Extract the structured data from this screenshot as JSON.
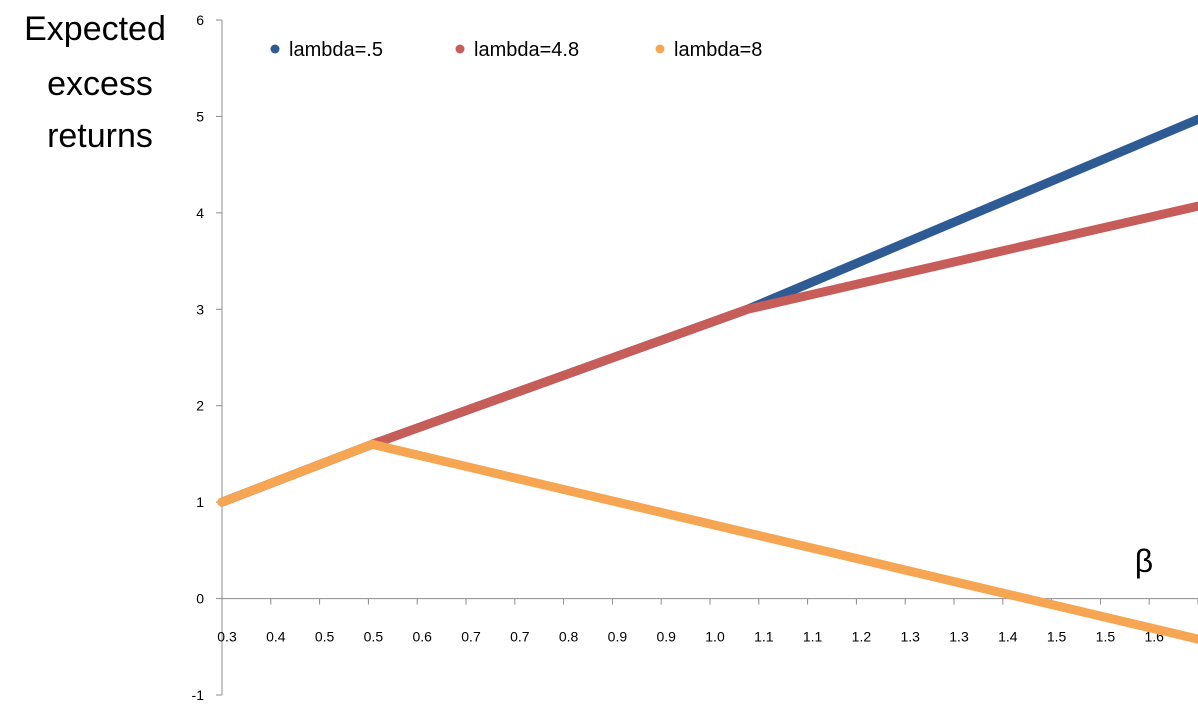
{
  "chart_data": {
    "type": "line",
    "ylabel": [
      "Expected",
      "excess",
      "returns"
    ],
    "xlabel": "β",
    "ylim": [
      -1,
      6
    ],
    "xlim": [
      0.3,
      1.6
    ],
    "y_ticks": [
      "-1",
      "0",
      "1",
      "2",
      "3",
      "4",
      "5",
      "6"
    ],
    "x_tick_labels": [
      "0.3",
      "0.4",
      "0.5",
      "0.5",
      "0.6",
      "0.7",
      "0.7",
      "0.8",
      "0.9",
      "0.9",
      "1.0",
      "1.1",
      "1.1",
      "1.2",
      "1.3",
      "1.3",
      "1.4",
      "1.5",
      "1.5",
      "1.6"
    ],
    "grid": false,
    "legend_position": "top",
    "series": [
      {
        "name": "lambda=.5",
        "color": "#2e5b94",
        "points": [
          [
            0.3,
            1.0
          ],
          [
            0.5,
            1.6
          ],
          [
            1.0,
            3.0
          ],
          [
            1.6,
            4.97
          ]
        ]
      },
      {
        "name": "lambda=4.8",
        "color": "#c75d59",
        "points": [
          [
            0.3,
            1.0
          ],
          [
            0.5,
            1.6
          ],
          [
            1.0,
            3.0
          ],
          [
            1.6,
            4.07
          ]
        ]
      },
      {
        "name": "lambda=8",
        "color": "#f6a553",
        "points": [
          [
            0.3,
            1.0
          ],
          [
            0.5,
            1.6
          ],
          [
            1.6,
            -0.42
          ]
        ]
      }
    ]
  }
}
